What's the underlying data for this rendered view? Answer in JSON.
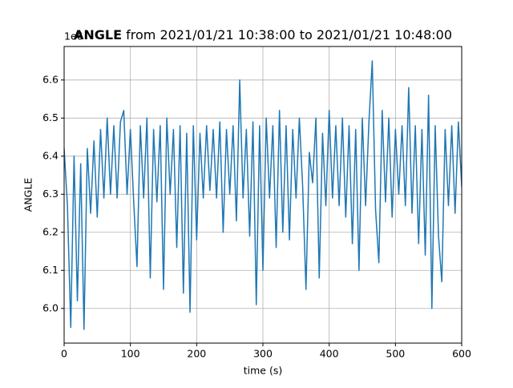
{
  "chart_data": {
    "type": "line",
    "title_bold": "ANGLE",
    "title_rest": " from 2021/01/21 10:38:00 to 2021/01/21 10:48:00",
    "y_offset_label": "1e6",
    "xlabel": "time (s)",
    "ylabel": "ANGLE",
    "xlim": [
      0,
      600
    ],
    "xticks": [
      0,
      100,
      200,
      300,
      400,
      500,
      600
    ],
    "ylim": [
      5.909,
      6.688
    ],
    "yticks": [
      {
        "value": 6.0,
        "label": "6.0"
      },
      {
        "value": 6.1,
        "label": "6.1"
      },
      {
        "value": 6.2,
        "label": "6.2"
      },
      {
        "value": 6.3,
        "label": "6.3"
      },
      {
        "value": 6.4,
        "label": "6.4"
      },
      {
        "value": 6.5,
        "label": "6.5"
      },
      {
        "value": 6.6,
        "label": "6.6"
      }
    ],
    "grid": true,
    "x": [
      0,
      5,
      10,
      15,
      20,
      25,
      30,
      35,
      40,
      45,
      50,
      55,
      60,
      65,
      70,
      75,
      80,
      85,
      90,
      95,
      100,
      105,
      110,
      115,
      120,
      125,
      130,
      135,
      140,
      145,
      150,
      155,
      160,
      165,
      170,
      175,
      180,
      185,
      190,
      195,
      200,
      205,
      210,
      215,
      220,
      225,
      230,
      235,
      240,
      245,
      250,
      255,
      260,
      265,
      270,
      275,
      280,
      285,
      290,
      295,
      300,
      305,
      310,
      315,
      320,
      325,
      330,
      335,
      340,
      345,
      350,
      355,
      360,
      365,
      370,
      375,
      380,
      385,
      390,
      395,
      400,
      405,
      410,
      415,
      420,
      425,
      430,
      435,
      440,
      445,
      450,
      455,
      460,
      465,
      470,
      475,
      480,
      485,
      490,
      495,
      500,
      505,
      510,
      515,
      520,
      525,
      530,
      535,
      540,
      545,
      550,
      555,
      560,
      565,
      570,
      575,
      580,
      585,
      590,
      595,
      600
    ],
    "series": [
      {
        "color": "#1f77b4",
        "values": [
          6.42,
          6.27,
          5.95,
          6.4,
          6.02,
          6.38,
          5.945,
          6.42,
          6.25,
          6.44,
          6.24,
          6.47,
          6.29,
          6.5,
          6.3,
          6.48,
          6.29,
          6.49,
          6.52,
          6.3,
          6.47,
          6.28,
          6.11,
          6.48,
          6.29,
          6.5,
          6.08,
          6.47,
          6.28,
          6.48,
          6.05,
          6.5,
          6.3,
          6.47,
          6.16,
          6.48,
          6.04,
          6.46,
          5.99,
          6.48,
          6.18,
          6.46,
          6.29,
          6.48,
          6.31,
          6.47,
          6.29,
          6.49,
          6.2,
          6.47,
          6.3,
          6.48,
          6.23,
          6.6,
          6.29,
          6.47,
          6.19,
          6.49,
          6.01,
          6.48,
          6.1,
          6.5,
          6.29,
          6.48,
          6.16,
          6.52,
          6.2,
          6.48,
          6.18,
          6.47,
          6.29,
          6.5,
          6.32,
          6.05,
          6.41,
          6.33,
          6.5,
          6.08,
          6.46,
          6.27,
          6.52,
          6.29,
          6.48,
          6.27,
          6.5,
          6.24,
          6.48,
          6.17,
          6.47,
          6.1,
          6.5,
          6.27,
          6.49,
          6.65,
          6.26,
          6.12,
          6.52,
          6.28,
          6.5,
          6.24,
          6.47,
          6.3,
          6.48,
          6.27,
          6.58,
          6.25,
          6.48,
          6.17,
          6.47,
          6.14,
          6.56,
          6.0,
          6.48,
          6.19,
          6.07,
          6.47,
          6.27,
          6.48,
          6.25,
          6.49,
          6.32
        ]
      }
    ]
  }
}
